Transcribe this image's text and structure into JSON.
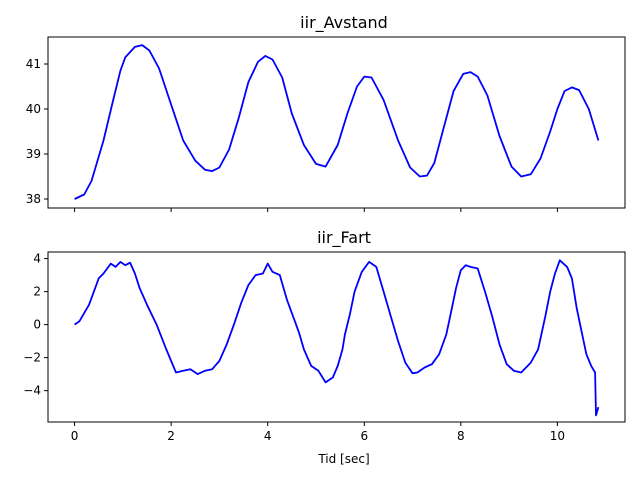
{
  "chart_data": [
    {
      "type": "line",
      "title": "iir_Avstand",
      "xlabel": "",
      "ylabel": "",
      "xlim": [
        -0.55,
        11.4
      ],
      "ylim": [
        37.8,
        41.6
      ],
      "xticks": [
        0,
        2,
        4,
        6,
        8,
        10
      ],
      "xtick_labels_shown": false,
      "yticks": [
        38,
        39,
        40,
        41
      ],
      "ytick_labels": [
        "38",
        "39",
        "40",
        "41"
      ],
      "color": "#0000ff",
      "series": [
        {
          "x": [
            0.0,
            0.2,
            0.35,
            0.6,
            0.8,
            0.95,
            1.05,
            1.25,
            1.4,
            1.55,
            1.75,
            2.0,
            2.25,
            2.5,
            2.7,
            2.85,
            3.0,
            3.2,
            3.4,
            3.6,
            3.8,
            3.95,
            4.1,
            4.3,
            4.5,
            4.75,
            5.0,
            5.2,
            5.45,
            5.65,
            5.85,
            6.0,
            6.15,
            6.4,
            6.7,
            6.95,
            7.15,
            7.3,
            7.45,
            7.65,
            7.85,
            8.05,
            8.2,
            8.35,
            8.55,
            8.8,
            9.05,
            9.25,
            9.45,
            9.65,
            9.85,
            10.0,
            10.15,
            10.3,
            10.45,
            10.65,
            10.85
          ],
          "y": [
            38.0,
            38.1,
            38.4,
            39.3,
            40.2,
            40.85,
            41.15,
            41.38,
            41.42,
            41.3,
            40.9,
            40.1,
            39.3,
            38.85,
            38.65,
            38.62,
            38.7,
            39.1,
            39.8,
            40.6,
            41.05,
            41.18,
            41.1,
            40.7,
            39.9,
            39.2,
            38.78,
            38.72,
            39.2,
            39.9,
            40.5,
            40.72,
            40.7,
            40.2,
            39.3,
            38.7,
            38.5,
            38.52,
            38.8,
            39.6,
            40.4,
            40.78,
            40.82,
            40.72,
            40.3,
            39.4,
            38.72,
            38.5,
            38.55,
            38.9,
            39.5,
            40.0,
            40.4,
            40.48,
            40.42,
            40.0,
            39.3
          ]
        }
      ]
    },
    {
      "type": "line",
      "title": "iir_Fart",
      "xlabel": "Tid [sec]",
      "ylabel": "",
      "xlim": [
        -0.55,
        11.4
      ],
      "ylim": [
        -5.9,
        4.4
      ],
      "xticks": [
        0,
        2,
        4,
        6,
        8,
        10
      ],
      "xtick_labels": [
        "0",
        "2",
        "4",
        "6",
        "8",
        "10"
      ],
      "yticks": [
        -4,
        -2,
        0,
        2,
        4
      ],
      "ytick_labels": [
        "−4",
        "−2",
        "0",
        "2",
        "4"
      ],
      "color": "#0000ff",
      "series": [
        {
          "x": [
            0.0,
            0.1,
            0.2,
            0.3,
            0.4,
            0.5,
            0.6,
            0.75,
            0.85,
            0.95,
            1.05,
            1.15,
            1.25,
            1.35,
            1.5,
            1.7,
            1.9,
            2.0,
            2.1,
            2.25,
            2.4,
            2.55,
            2.7,
            2.85,
            3.0,
            3.15,
            3.3,
            3.45,
            3.6,
            3.75,
            3.9,
            4.0,
            4.1,
            4.25,
            4.4,
            4.55,
            4.65,
            4.75,
            4.9,
            5.05,
            5.2,
            5.35,
            5.45,
            5.55,
            5.6,
            5.7,
            5.8,
            5.95,
            6.1,
            6.25,
            6.4,
            6.55,
            6.7,
            6.85,
            7.0,
            7.1,
            7.25,
            7.4,
            7.55,
            7.7,
            7.8,
            7.9,
            8.0,
            8.1,
            8.2,
            8.35,
            8.5,
            8.65,
            8.8,
            8.95,
            9.1,
            9.25,
            9.45,
            9.6,
            9.75,
            9.85,
            9.95,
            10.05,
            10.2,
            10.3,
            10.4,
            10.5,
            10.6,
            10.7,
            10.78,
            10.8,
            10.85
          ],
          "y": [
            0.0,
            0.2,
            0.7,
            1.2,
            2.0,
            2.8,
            3.1,
            3.7,
            3.5,
            3.8,
            3.6,
            3.75,
            3.1,
            2.2,
            1.2,
            0.0,
            -1.5,
            -2.2,
            -2.9,
            -2.8,
            -2.7,
            -3.0,
            -2.8,
            -2.7,
            -2.2,
            -1.2,
            0.0,
            1.3,
            2.4,
            3.0,
            3.1,
            3.7,
            3.2,
            3.0,
            1.5,
            0.3,
            -0.5,
            -1.5,
            -2.5,
            -2.8,
            -3.5,
            -3.2,
            -2.5,
            -1.5,
            -0.6,
            0.6,
            2.0,
            3.2,
            3.8,
            3.5,
            2.0,
            0.5,
            -1.0,
            -2.3,
            -2.95,
            -2.9,
            -2.6,
            -2.4,
            -1.8,
            -0.6,
            0.8,
            2.2,
            3.3,
            3.6,
            3.5,
            3.4,
            2.0,
            0.5,
            -1.2,
            -2.4,
            -2.8,
            -2.9,
            -2.3,
            -1.5,
            0.5,
            2.0,
            3.1,
            3.9,
            3.5,
            2.8,
            1.0,
            -0.4,
            -1.8,
            -2.5,
            -2.9,
            -5.5,
            -5.0
          ]
        }
      ]
    }
  ]
}
